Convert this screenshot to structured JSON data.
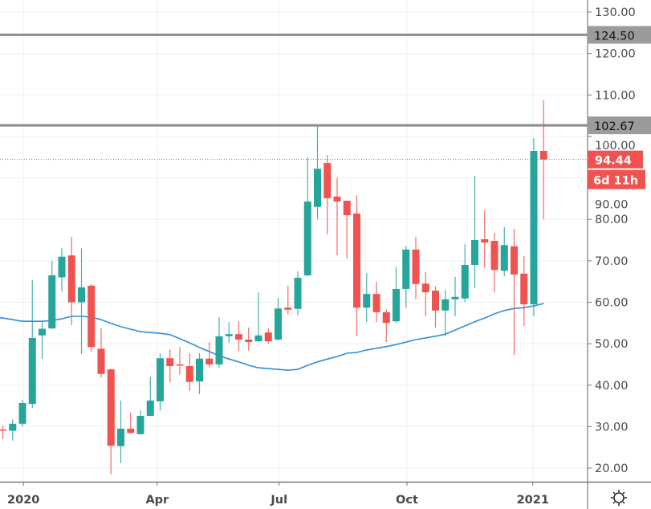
{
  "chart_data": {
    "type": "candlestick",
    "title": "",
    "ylim": [
      20,
      130
    ],
    "y_ticks": [
      "130.00",
      "120.00",
      "110.00",
      "100.00",
      "90.00",
      "80.00",
      "70.00",
      "60.00",
      "50.00",
      "40.00",
      "30.00",
      "20.00"
    ],
    "y_tick_values": [
      130,
      120,
      110,
      100,
      90,
      80,
      70,
      60,
      50,
      40,
      30,
      20
    ],
    "x_ticks": [
      {
        "label": "2020",
        "index": 2.1
      },
      {
        "label": "Apr",
        "index": 15.7
      },
      {
        "label": "Jul",
        "index": 28.1
      },
      {
        "label": "Oct",
        "index": 41.1
      },
      {
        "label": "2021",
        "index": 53.9
      }
    ],
    "grid": true,
    "colors": {
      "up": "#26a69a",
      "down": "#ef5350",
      "ma": "#2f8fd8",
      "level": "#8c8c8c",
      "grid": "#eef0f3"
    },
    "candles": [
      [
        29.3,
        30.2,
        27.0,
        29.0
      ],
      [
        29.0,
        31.8,
        26.6,
        30.7
      ],
      [
        30.7,
        36.5,
        30.0,
        35.7
      ],
      [
        35.5,
        65.3,
        34.5,
        51.4
      ],
      [
        52.0,
        55.5,
        46.3,
        53.6
      ],
      [
        53.7,
        70.0,
        53.5,
        66.5
      ],
      [
        66.0,
        73.0,
        62.6,
        71.0
      ],
      [
        71.3,
        75.8,
        54.5,
        60.0
      ],
      [
        60.0,
        73.0,
        47.5,
        63.6
      ],
      [
        64.0,
        64.4,
        48.0,
        49.2
      ],
      [
        48.8,
        53.7,
        41.9,
        42.7
      ],
      [
        43.8,
        44.0,
        18.5,
        25.4
      ],
      [
        25.3,
        36.3,
        21.2,
        29.5
      ],
      [
        29.5,
        33.4,
        28.3,
        28.5
      ],
      [
        28.2,
        33.9,
        28.0,
        32.6
      ],
      [
        32.6,
        42.0,
        32.5,
        36.3
      ],
      [
        36.1,
        47.7,
        33.8,
        46.5
      ],
      [
        46.5,
        48.6,
        40.7,
        44.6
      ],
      [
        45.0,
        49.2,
        42.5,
        44.8
      ],
      [
        44.6,
        47.7,
        38.6,
        40.8
      ],
      [
        40.9,
        47.7,
        37.8,
        46.4
      ],
      [
        46.4,
        50.4,
        44.2,
        45.0
      ],
      [
        45.0,
        56.4,
        44.2,
        51.8
      ],
      [
        51.8,
        55.2,
        50.2,
        52.3
      ],
      [
        52.3,
        55.4,
        48.3,
        51.0
      ],
      [
        51.0,
        53.9,
        48.3,
        50.4
      ],
      [
        50.6,
        62.4,
        50.4,
        52.0
      ],
      [
        52.7,
        53.7,
        50.0,
        50.6
      ],
      [
        51.0,
        61.0,
        50.8,
        58.5
      ],
      [
        58.7,
        64.0,
        57.0,
        58.2
      ],
      [
        58.4,
        67.5,
        56.8,
        65.9
      ],
      [
        66.5,
        95.0,
        66.3,
        84.3
      ],
      [
        83.0,
        102.7,
        80.0,
        92.2
      ],
      [
        93.6,
        95.5,
        76.4,
        85.1
      ],
      [
        85.5,
        90.0,
        71.3,
        84.3
      ],
      [
        84.5,
        84.5,
        70.5,
        81.0
      ],
      [
        81.4,
        85.8,
        51.8,
        58.7
      ],
      [
        58.7,
        67.0,
        55.2,
        62.0
      ],
      [
        62.0,
        64.9,
        55.2,
        57.6
      ],
      [
        57.6,
        58.3,
        50.4,
        55.0
      ],
      [
        55.4,
        68.5,
        55.0,
        63.2
      ],
      [
        63.2,
        73.6,
        58.7,
        72.7
      ],
      [
        72.7,
        75.8,
        60.7,
        64.4
      ],
      [
        64.5,
        67.3,
        56.6,
        62.4
      ],
      [
        62.8,
        63.8,
        53.9,
        58.0
      ],
      [
        58.0,
        63.0,
        51.8,
        60.7
      ],
      [
        60.7,
        66.1,
        56.6,
        61.3
      ],
      [
        60.9,
        74.0,
        60.0,
        69.0
      ],
      [
        69.0,
        90.5,
        63.4,
        75.0
      ],
      [
        75.2,
        82.2,
        68.4,
        74.4
      ],
      [
        74.8,
        76.7,
        62.4,
        67.8
      ],
      [
        67.6,
        78.1,
        66.3,
        73.8
      ],
      [
        73.5,
        77.7,
        47.3,
        66.7
      ],
      [
        66.9,
        71.2,
        54.3,
        59.5
      ],
      [
        59.5,
        99.6,
        56.6,
        96.5
      ],
      [
        96.5,
        108.7,
        80.0,
        94.44
      ]
    ],
    "moving_average": [
      56.2,
      55.8,
      55.4,
      55.4,
      55.4,
      55.6,
      56.0,
      56.6,
      56.6,
      56.4,
      55.8,
      54.9,
      54.1,
      53.5,
      52.9,
      52.7,
      52.5,
      52.2,
      51.2,
      50.2,
      49.1,
      48.1,
      47.1,
      46.3,
      45.6,
      44.8,
      44.2,
      44.0,
      43.8,
      43.6,
      43.8,
      44.8,
      45.6,
      46.3,
      46.9,
      47.7,
      47.9,
      48.5,
      48.9,
      49.3,
      49.8,
      50.4,
      51.0,
      51.4,
      51.8,
      52.3,
      53.3,
      54.3,
      55.3,
      56.2,
      57.2,
      58.0,
      58.5,
      58.7,
      59.1,
      59.7
    ],
    "horizontal_levels": [
      {
        "value": 124.5,
        "label": "124.50"
      },
      {
        "value": 102.67,
        "label": "102.67"
      }
    ],
    "last_price": {
      "value": 94.44,
      "label": "94.44",
      "countdown": "6d 11h"
    }
  }
}
